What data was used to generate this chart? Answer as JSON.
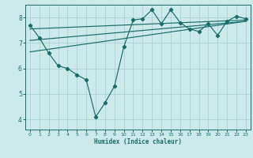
{
  "bg_color": "#cceaea",
  "line_color": "#1a6b6b",
  "grid_color": "#aad4d4",
  "xlabel": "Humidex (Indice chaleur)",
  "ylim": [
    3.6,
    8.5
  ],
  "xlim": [
    -0.5,
    23.5
  ],
  "yticks": [
    4,
    5,
    6,
    7,
    8
  ],
  "xticks": [
    0,
    1,
    2,
    3,
    4,
    5,
    6,
    7,
    8,
    9,
    10,
    11,
    12,
    13,
    14,
    15,
    16,
    17,
    18,
    19,
    20,
    21,
    22,
    23
  ],
  "jagged_x": [
    0,
    1,
    2,
    3,
    4,
    5,
    6,
    7,
    8,
    9,
    10,
    11,
    12,
    13,
    14,
    15,
    16,
    17,
    18,
    19,
    20,
    21,
    22,
    23
  ],
  "jagged_y": [
    7.7,
    7.2,
    6.6,
    6.1,
    6.0,
    5.75,
    5.55,
    4.1,
    4.65,
    5.3,
    6.85,
    7.9,
    7.95,
    8.3,
    7.75,
    8.3,
    7.8,
    7.55,
    7.45,
    7.75,
    7.3,
    7.85,
    8.05,
    7.95
  ],
  "trend1_x": [
    0,
    23
  ],
  "trend1_y": [
    7.55,
    7.9
  ],
  "trend2_x": [
    0,
    23
  ],
  "trend2_y": [
    7.1,
    7.85
  ],
  "trend3_x": [
    0,
    23
  ],
  "trend3_y": [
    6.65,
    7.85
  ]
}
